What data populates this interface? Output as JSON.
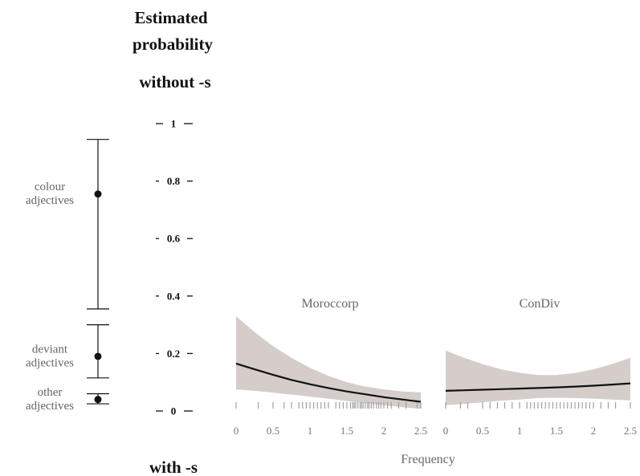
{
  "chart_data": {
    "type": "line",
    "title": "Estimated probability",
    "top_label": "without -s",
    "bottom_label": "with -s",
    "xlabel": "Frequency",
    "ylim": [
      0,
      1
    ],
    "y_ticks": [
      "0",
      "0.2",
      "0.4",
      "0.6",
      "0.8",
      "1"
    ],
    "y_tick_values": [
      0,
      0.2,
      0.4,
      0.6,
      0.8,
      1
    ],
    "category_estimates": [
      {
        "label_lines": [
          "colour",
          "adjectives"
        ],
        "estimate": 0.755,
        "lower": 0.355,
        "upper": 0.945
      },
      {
        "label_lines": [
          "deviant",
          "adjectives"
        ],
        "estimate": 0.19,
        "lower": 0.115,
        "upper": 0.3
      },
      {
        "label_lines": [
          "other",
          "adjectives"
        ],
        "estimate": 0.04,
        "lower": 0.025,
        "upper": 0.06
      }
    ],
    "panels": [
      {
        "name": "Moroccorp",
        "x_ticks": [
          "0",
          "0.5",
          "1",
          "1.5",
          "2",
          "2.5"
        ],
        "x_tick_values": [
          0,
          0.5,
          1,
          1.5,
          2,
          2.5
        ],
        "xlim": [
          0,
          2.55
        ],
        "x": [
          0,
          0.25,
          0.5,
          0.75,
          1,
          1.25,
          1.5,
          1.75,
          2,
          2.25,
          2.5
        ],
        "fit": [
          0.165,
          0.145,
          0.126,
          0.108,
          0.093,
          0.08,
          0.068,
          0.058,
          0.048,
          0.04,
          0.032
        ],
        "ci_upper": [
          0.33,
          0.275,
          0.225,
          0.185,
          0.15,
          0.122,
          0.1,
          0.085,
          0.075,
          0.068,
          0.065
        ],
        "ci_lower": [
          0.075,
          0.07,
          0.064,
          0.057,
          0.05,
          0.043,
          0.035,
          0.027,
          0.02,
          0.013,
          0.008
        ],
        "rug": [
          0,
          0.3,
          0.5,
          0.65,
          0.75,
          0.85,
          0.9,
          0.95,
          1.0,
          1.05,
          1.1,
          1.15,
          1.2,
          1.25,
          1.35,
          1.4,
          1.45,
          1.5,
          1.55,
          1.58,
          1.6,
          1.62,
          1.65,
          1.68,
          1.7,
          1.72,
          1.75,
          1.78,
          1.8,
          1.83,
          1.86,
          1.9,
          1.93,
          1.96,
          2.0,
          2.05,
          2.1,
          2.2,
          2.3,
          2.45,
          2.5
        ]
      },
      {
        "name": "ConDiv",
        "x_ticks": [
          "0",
          "0.5",
          "1",
          "1.5",
          "2",
          "2.5"
        ],
        "x_tick_values": [
          0,
          0.5,
          1,
          1.5,
          2,
          2.5
        ],
        "xlim": [
          0,
          2.55
        ],
        "x": [
          0,
          0.25,
          0.5,
          0.75,
          1,
          1.25,
          1.5,
          1.75,
          2,
          2.25,
          2.5
        ],
        "fit": [
          0.07,
          0.072,
          0.074,
          0.076,
          0.078,
          0.08,
          0.082,
          0.085,
          0.088,
          0.092,
          0.096
        ],
        "ci_upper": [
          0.21,
          0.185,
          0.163,
          0.145,
          0.133,
          0.125,
          0.125,
          0.132,
          0.145,
          0.163,
          0.185
        ],
        "ci_lower": [
          0.02,
          0.025,
          0.03,
          0.036,
          0.04,
          0.045,
          0.046,
          0.045,
          0.043,
          0.04,
          0.037
        ],
        "rug": [
          0,
          0.2,
          0.3,
          0.5,
          0.6,
          0.7,
          0.8,
          0.9,
          1.0,
          1.1,
          1.15,
          1.2,
          1.25,
          1.3,
          1.35,
          1.4,
          1.45,
          1.5,
          1.55,
          1.6,
          1.65,
          1.7,
          1.75,
          1.8,
          1.85,
          1.9,
          1.95,
          2.0,
          2.1,
          2.2,
          2.3,
          2.5
        ]
      }
    ]
  }
}
